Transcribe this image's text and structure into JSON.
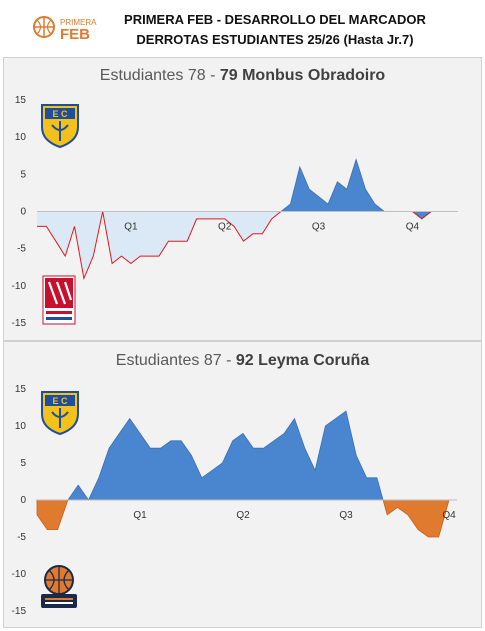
{
  "header": {
    "logo_text_1": "PRIMERA",
    "logo_text_2": "FEB",
    "title_line1": "PRIMERA FEB - DESARROLLO DEL MARCADOR",
    "title_line2": "DERROTAS ESTUDIANTES 25/26 (Hasta Jr.7)"
  },
  "colors": {
    "positive_fill": "#4a86cf",
    "negative_fill": "#e07a2e",
    "light_fill": "#dbe8f5",
    "red_line": "#e01b1b",
    "panel_bg": "#f2f2f2"
  },
  "panels": [
    {
      "title_prefix": "Estudiantes 78 - ",
      "title_bold": "79 Monbus Obradoiro",
      "home_logo": "estudiantes-crest",
      "away_logo": "obradoiro-crest"
    },
    {
      "title_prefix": "Estudiantes 87 - ",
      "title_bold": "92 Leyma Coruña",
      "home_logo": "estudiantes-crest",
      "away_logo": "basquet-coruna-crest"
    }
  ],
  "chart_data": [
    {
      "type": "area",
      "title": "Estudiantes 78 - 79 Monbus Obradoiro",
      "ylim": [
        -15,
        15
      ],
      "yticks": [
        15,
        10,
        5,
        0,
        -5,
        -10,
        -15
      ],
      "xlim": [
        0,
        44
      ],
      "quarter_labels": [
        "Q1",
        "Q2",
        "Q3",
        "Q4"
      ],
      "quarter_x": [
        10,
        20,
        30,
        40
      ],
      "grid": false,
      "y": [
        -2,
        -2,
        -4,
        -6,
        -2,
        -9,
        -6,
        0,
        -7,
        -6,
        -7,
        -6,
        -6,
        -6,
        -4,
        -4,
        -4,
        -1,
        -1,
        -1,
        -1,
        -2,
        -4,
        -3,
        -3,
        -1,
        0,
        1,
        6,
        3,
        2,
        1,
        4,
        3,
        7,
        3,
        1,
        0,
        0,
        0,
        0,
        -1,
        0
      ],
      "segments": [
        {
          "from": 0,
          "to": 26,
          "style": "light-fill-red-line"
        },
        {
          "from": 26,
          "to": 43,
          "style": "blue-fill"
        }
      ]
    },
    {
      "type": "area",
      "title": "Estudiantes 87 - 92 Leyma Coruña",
      "ylim": [
        -15,
        15
      ],
      "yticks": [
        15,
        10,
        5,
        0,
        -5,
        -10,
        -15
      ],
      "xlim": [
        0,
        40
      ],
      "quarter_labels": [
        "Q1",
        "Q2",
        "Q3",
        "Q4"
      ],
      "quarter_x": [
        10,
        20,
        30,
        40
      ],
      "grid": false,
      "y": [
        -2,
        -4,
        -4,
        0,
        2,
        0,
        3,
        7,
        9,
        11,
        9,
        7,
        7,
        8,
        8,
        6,
        3,
        4,
        5,
        8,
        9,
        7,
        7,
        8,
        9,
        11,
        7,
        4,
        10,
        11,
        12,
        6,
        3,
        3,
        -2,
        -1,
        -2,
        -4,
        -5,
        -5,
        0
      ],
      "segments": [
        {
          "from": 0,
          "to": 40,
          "style": "blue-orange-fill"
        }
      ]
    }
  ]
}
